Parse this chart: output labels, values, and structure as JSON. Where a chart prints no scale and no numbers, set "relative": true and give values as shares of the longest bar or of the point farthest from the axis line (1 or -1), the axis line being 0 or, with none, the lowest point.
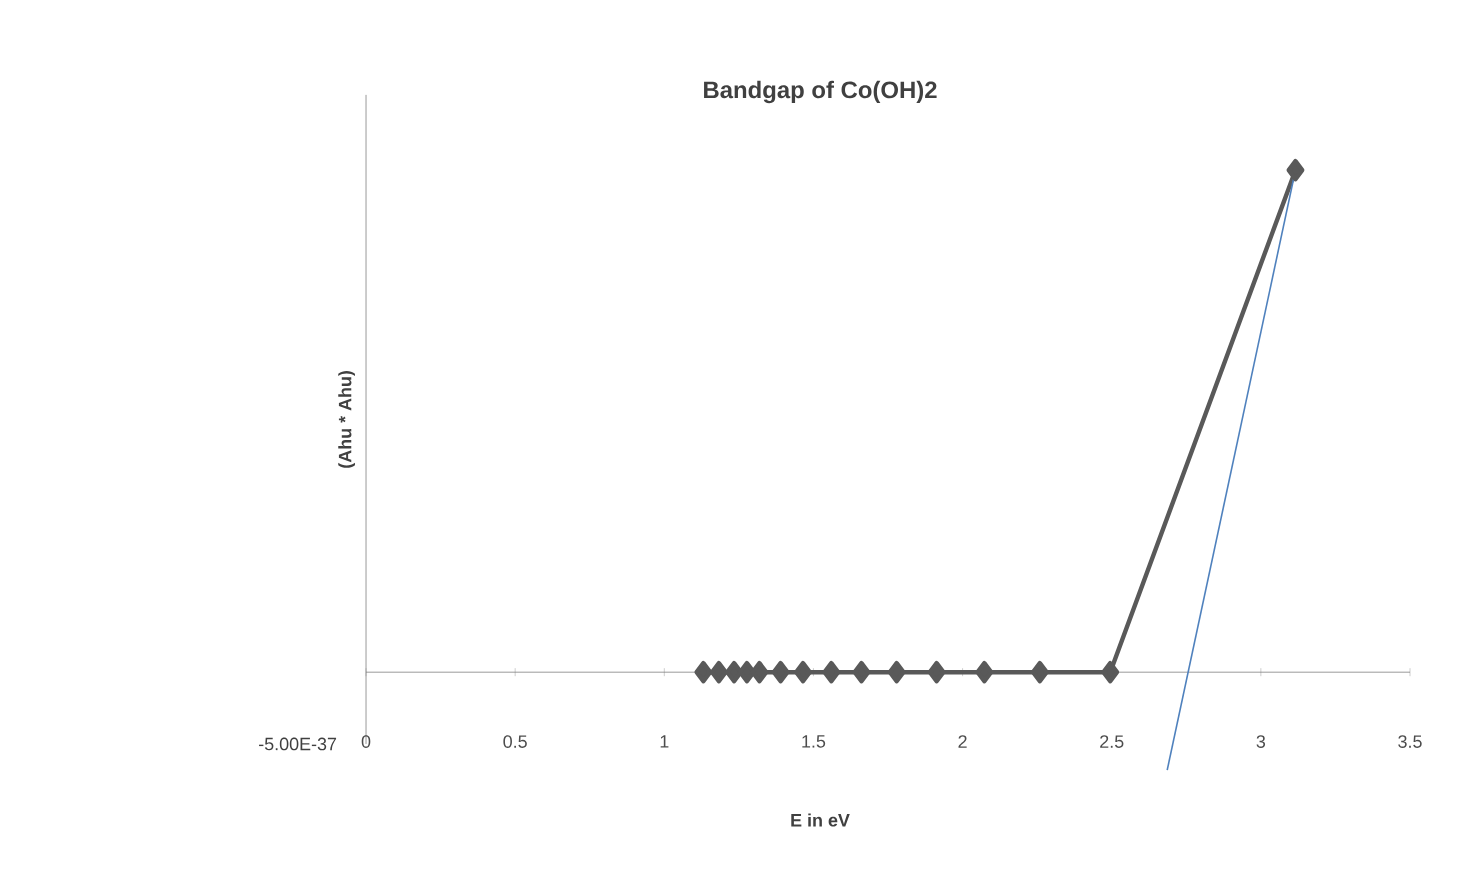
{
  "chart_data": {
    "type": "line",
    "title": "Bandgap of Co(OH)2",
    "xlabel": "E in eV",
    "ylabel": "(Ahu * Ahu)",
    "relative": true,
    "annotations": [
      "-5.00E-37"
    ],
    "xlim": [
      0,
      3.5
    ],
    "xticks": [
      0,
      0.5,
      1,
      1.5,
      2,
      2.5,
      3,
      3.5
    ],
    "grid": false,
    "series": [
      {
        "color": "#595959",
        "marker": "diamond",
        "line_style": "solid",
        "x": [
          1.131,
          1.183,
          1.234,
          1.277,
          1.319,
          1.39,
          1.465,
          1.56,
          1.661,
          1.779,
          1.913,
          2.073,
          2.259,
          2.495,
          3.116
        ],
        "values": [
          0,
          0,
          0,
          0,
          0,
          0,
          0,
          0,
          0,
          0,
          0,
          0,
          0,
          0,
          1
        ]
      },
      {
        "type": "line",
        "color": "#4f81bd",
        "marker": "none",
        "line_style": "solid",
        "x": [
          2.686,
          3.116
        ],
        "values": [
          -0.195,
          1
        ]
      }
    ]
  }
}
